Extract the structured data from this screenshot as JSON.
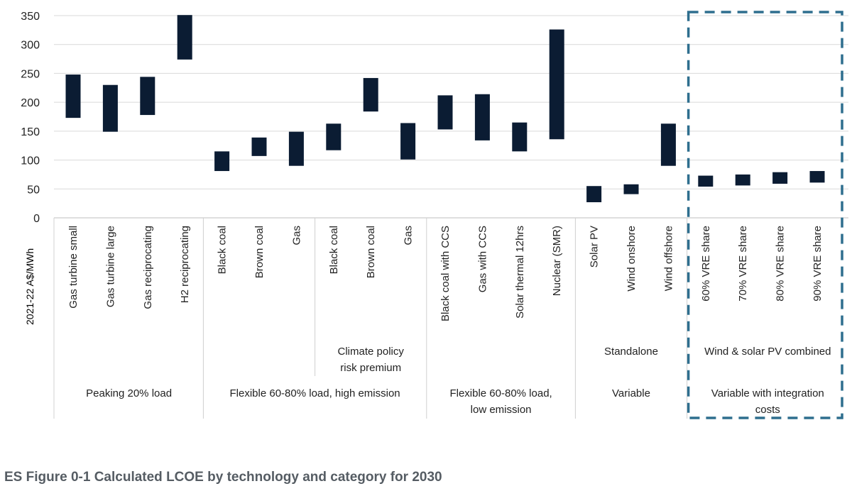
{
  "caption": "ES Figure 0-1 Calculated LCOE by technology and category for 2030",
  "chart_data": {
    "type": "floating_bar",
    "ylabel": "2021-22 A$/MWh",
    "ylim": [
      0,
      350
    ],
    "yticks": [
      0,
      50,
      100,
      150,
      200,
      250,
      300,
      350
    ],
    "grid": true,
    "bar_color": "#0b1c33",
    "highlight_color": "#2e6e8e",
    "categories": [
      "Gas turbine small",
      "Gas turbine large",
      "Gas reciprocating",
      "H2 reciprocating",
      "Black coal",
      "Brown coal",
      "Gas",
      "Black coal",
      "Brown coal",
      "Gas",
      "Black coal with CCS",
      "Gas with CCS",
      "Solar thermal 12hrs",
      "Nuclear (SMR)",
      "Solar PV",
      "Wind onshore",
      "Wind offshore",
      "60% VRE share",
      "70% VRE share",
      "80% VRE share",
      "90% VRE share"
    ],
    "low": [
      173,
      149,
      178,
      274,
      81,
      107,
      90,
      117,
      184,
      101,
      153,
      134,
      115,
      136,
      27,
      41,
      90,
      54,
      56,
      59,
      61
    ],
    "high": [
      248,
      230,
      244,
      351,
      115,
      139,
      149,
      163,
      242,
      164,
      212,
      214,
      165,
      326,
      55,
      58,
      163,
      73,
      75,
      79,
      81
    ],
    "groups": [
      {
        "label": "Peaking 20% load",
        "start": 0,
        "end": 3
      },
      {
        "label": "Flexible 60-80% load, high emission",
        "start": 4,
        "end": 9
      },
      {
        "label": "Flexible 60-80% load, low emission",
        "start": 10,
        "end": 13
      },
      {
        "label": "Variable",
        "start": 14,
        "end": 16
      },
      {
        "label": "Variable with integration costs",
        "start": 17,
        "end": 20
      }
    ],
    "subgroups": [
      {
        "label": "Climate policy risk premium",
        "start": 7,
        "end": 9
      },
      {
        "label": "Standalone",
        "start": 14,
        "end": 16
      },
      {
        "label": "Wind & solar PV combined",
        "start": 17,
        "end": 20
      }
    ],
    "highlight": {
      "start": 17,
      "end": 20
    }
  }
}
